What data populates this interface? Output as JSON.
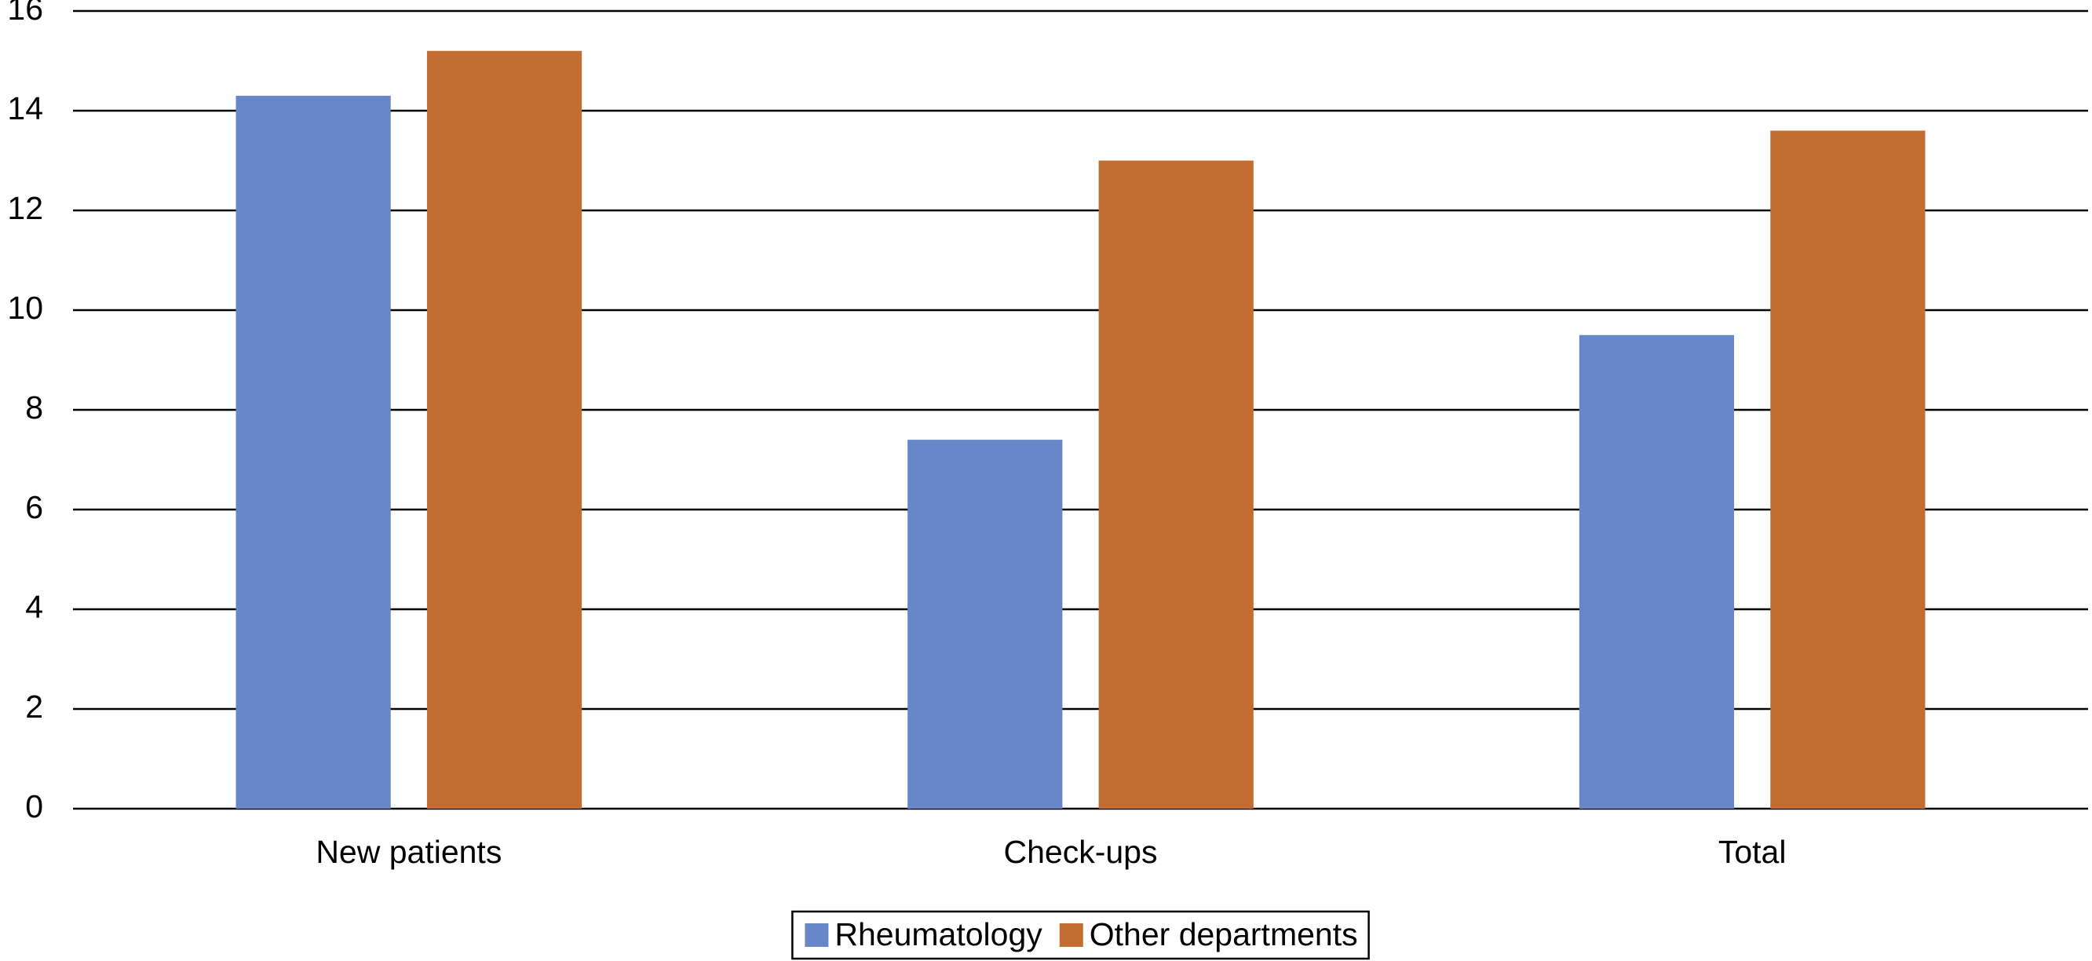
{
  "chart_data": {
    "type": "bar",
    "categories": [
      "New patients",
      "Check-ups",
      "Total"
    ],
    "series": [
      {
        "name": "Rheumatology",
        "color": "#6787c8",
        "values": [
          14.3,
          7.4,
          9.5
        ]
      },
      {
        "name": "Other departments",
        "color": "#c46d32",
        "values": [
          15.2,
          13.0,
          13.6
        ]
      }
    ],
    "ylim": [
      0,
      16
    ],
    "yticks": [
      0,
      2,
      4,
      6,
      8,
      10,
      12,
      14,
      16
    ],
    "grid": true,
    "legend": "bottom"
  }
}
